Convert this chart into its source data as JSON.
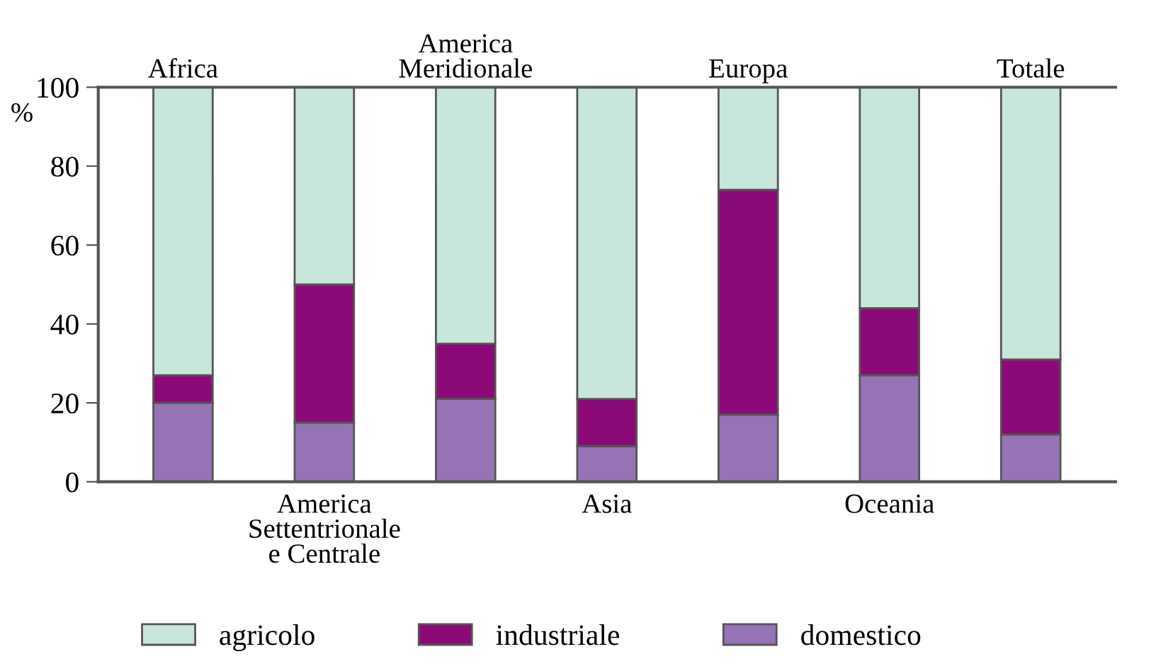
{
  "chart_data": {
    "type": "bar",
    "stacked": true,
    "ylabel": "%",
    "categories": [
      "Africa",
      "America\nSettentrionale\ne Centrale",
      "America\nMeridionale",
      "Asia",
      "Europa",
      "Oceania",
      "Totale"
    ],
    "series": [
      {
        "name": "domestico",
        "color": "#9673b4",
        "values": [
          20,
          15,
          21,
          9,
          17,
          27,
          12
        ]
      },
      {
        "name": "industriale",
        "color": "#8c0a78",
        "values": [
          7,
          35,
          14,
          12,
          57,
          17,
          19
        ]
      },
      {
        "name": "agricolo",
        "color": "#c8e6dc",
        "values": [
          73,
          50,
          65,
          79,
          26,
          56,
          69
        ]
      }
    ],
    "ylim": [
      0,
      100
    ],
    "yticks": [
      0,
      20,
      40,
      60,
      80,
      100
    ],
    "grid": false,
    "legend": "bottom"
  }
}
